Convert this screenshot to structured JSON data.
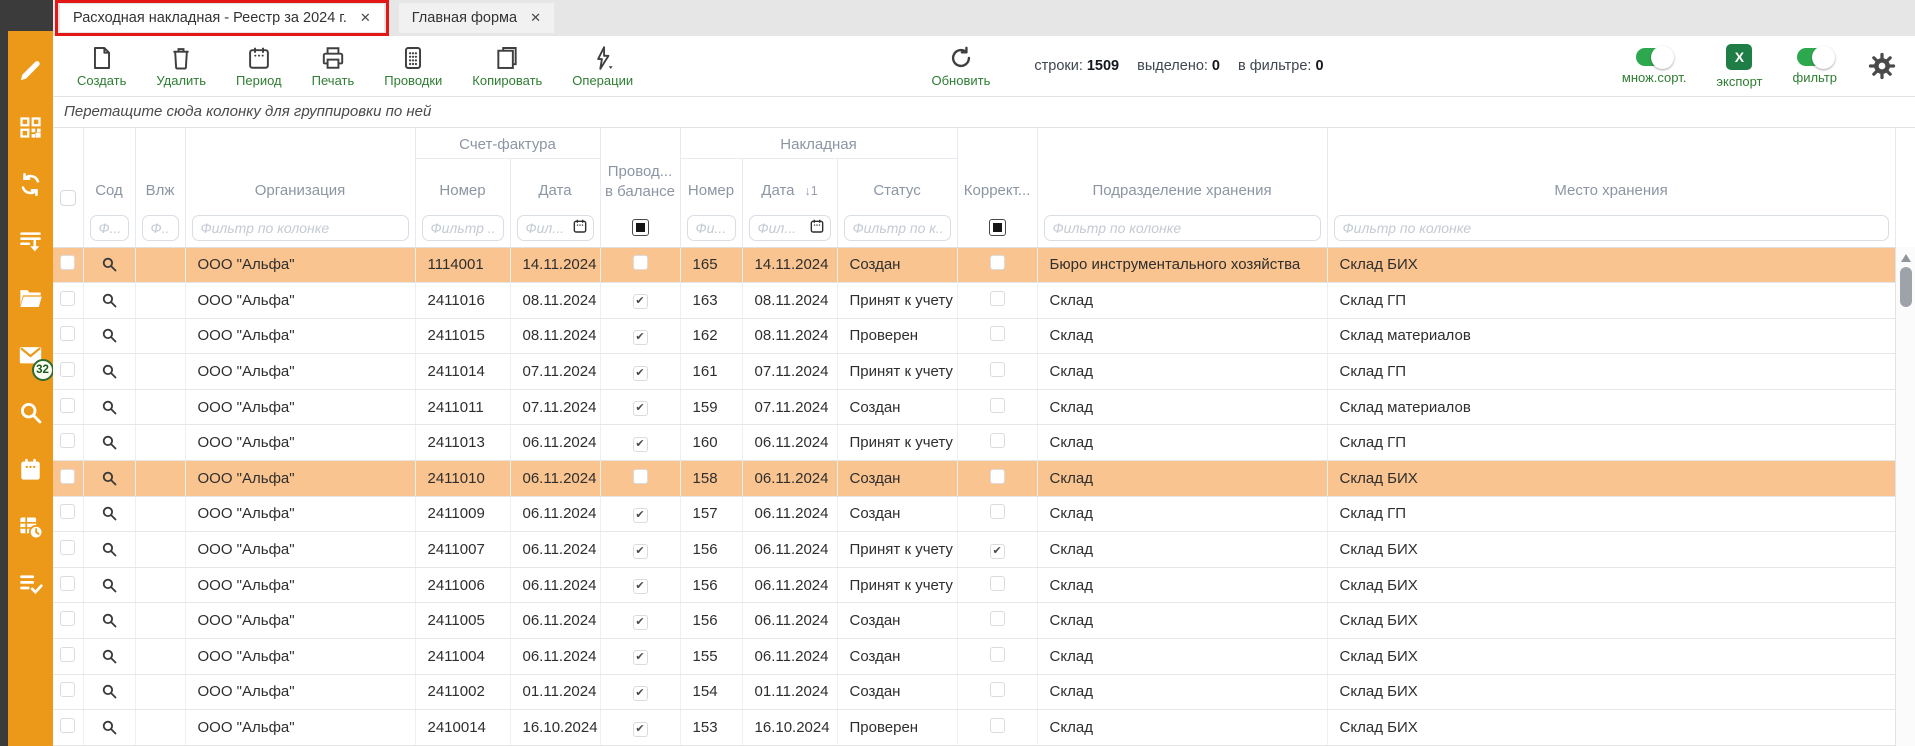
{
  "window": {
    "tabs": [
      {
        "label": "Расходная накладная - Реестр за 2024 г.",
        "close_glyph": "✕",
        "active": true,
        "annotated": true
      },
      {
        "label": "Главная форма",
        "close_glyph": "✕",
        "active": false,
        "annotated": false
      }
    ]
  },
  "sidebar": {
    "icons": [
      {
        "name": "pencil-icon"
      },
      {
        "name": "qr-code-icon"
      },
      {
        "name": "sync-icon"
      },
      {
        "name": "list-download-icon"
      },
      {
        "name": "folder-icon"
      },
      {
        "name": "mail-icon",
        "badge": "32"
      },
      {
        "name": "search-icon"
      },
      {
        "name": "calendar-white-icon"
      },
      {
        "name": "table-clock-icon"
      },
      {
        "name": "list-check-icon"
      }
    ]
  },
  "toolbar": {
    "buttons": [
      {
        "label": "Создать",
        "icon": "new-document-icon"
      },
      {
        "label": "Удалить",
        "icon": "trash-icon"
      },
      {
        "label": "Период",
        "icon": "calendar-icon"
      },
      {
        "label": "Печать",
        "icon": "printer-icon"
      },
      {
        "label": "Проводки",
        "icon": "calculator-icon"
      },
      {
        "label": "Копировать",
        "icon": "copy-icon"
      },
      {
        "label": "Операции",
        "icon": "lightning-icon",
        "has_dropdown": true
      }
    ],
    "refresh": {
      "label": "Обновить",
      "icon": "refresh-icon"
    },
    "stats": [
      {
        "label": "строки:",
        "value": "1509"
      },
      {
        "label": "выделено:",
        "value": "0"
      },
      {
        "label": "в фильтре:",
        "value": "0"
      }
    ],
    "multisort_toggle": {
      "label": "множ.сорт.",
      "on": true
    },
    "export_button": {
      "label": "экспорт",
      "icon_letter": "X"
    },
    "filter_toggle": {
      "label": "фильтр",
      "on": true
    },
    "settings_icon": "gear-icon"
  },
  "grouping_hint": "Перетащите сюда колонку для группировки по ней",
  "table": {
    "column_groups": {
      "invoice": "Счет-фактура",
      "waybill": "Накладная"
    },
    "columns": {
      "sod": "Сод",
      "vlzh": "Влж",
      "org": "Организация",
      "invoice_number": "Номер",
      "invoice_date": "Дата",
      "posted_line1": "Провод...",
      "posted_line2": "в балансе",
      "waybill_number": "Номер",
      "waybill_date": "Дата",
      "waybill_date_sort": "↓1",
      "status": "Статус",
      "correction": "Коррект...",
      "storage_division": "Подразделение хранения",
      "storage_place": "Место хранения"
    },
    "filters": {
      "sod": "Ф...",
      "vlzh": "Ф...",
      "org": "Фильтр по колонке",
      "invoice_number": "Фильтр ...",
      "invoice_date": "Фил...",
      "waybill_number": "Фи...",
      "waybill_date": "Фил...",
      "status": "Фильтр по к...",
      "storage_division": "Фильтр по колонке",
      "storage_place": "Фильтр по колонке"
    },
    "rows": [
      {
        "org": "ООО \"Альфа\"",
        "invoice_number": "1114001",
        "invoice_date": "14.11.2024",
        "posted": false,
        "waybill_number": "165",
        "waybill_date": "14.11.2024",
        "status": "Создан",
        "correction": false,
        "storage_division": "Бюро инструментального хозяйства",
        "storage_place": "Склад БИХ",
        "highlighted": true
      },
      {
        "org": "ООО \"Альфа\"",
        "invoice_number": "2411016",
        "invoice_date": "08.11.2024",
        "posted": true,
        "waybill_number": "163",
        "waybill_date": "08.11.2024",
        "status": "Принят к учету",
        "correction": false,
        "storage_division": "Склад",
        "storage_place": "Склад ГП",
        "highlighted": false
      },
      {
        "org": "ООО \"Альфа\"",
        "invoice_number": "2411015",
        "invoice_date": "08.11.2024",
        "posted": true,
        "waybill_number": "162",
        "waybill_date": "08.11.2024",
        "status": "Проверен",
        "correction": false,
        "storage_division": "Склад",
        "storage_place": "Склад материалов",
        "highlighted": false
      },
      {
        "org": "ООО \"Альфа\"",
        "invoice_number": "2411014",
        "invoice_date": "07.11.2024",
        "posted": true,
        "waybill_number": "161",
        "waybill_date": "07.11.2024",
        "status": "Принят к учету",
        "correction": false,
        "storage_division": "Склад",
        "storage_place": "Склад ГП",
        "highlighted": false
      },
      {
        "org": "ООО \"Альфа\"",
        "invoice_number": "2411011",
        "invoice_date": "07.11.2024",
        "posted": true,
        "waybill_number": "159",
        "waybill_date": "07.11.2024",
        "status": "Создан",
        "correction": false,
        "storage_division": "Склад",
        "storage_place": "Склад материалов",
        "highlighted": false
      },
      {
        "org": "ООО \"Альфа\"",
        "invoice_number": "2411013",
        "invoice_date": "06.11.2024",
        "posted": true,
        "waybill_number": "160",
        "waybill_date": "06.11.2024",
        "status": "Принят к учету",
        "correction": false,
        "storage_division": "Склад",
        "storage_place": "Склад ГП",
        "highlighted": false
      },
      {
        "org": "ООО \"Альфа\"",
        "invoice_number": "2411010",
        "invoice_date": "06.11.2024",
        "posted": false,
        "waybill_number": "158",
        "waybill_date": "06.11.2024",
        "status": "Создан",
        "correction": false,
        "storage_division": "Склад",
        "storage_place": "Склад БИХ",
        "highlighted": true
      },
      {
        "org": "ООО \"Альфа\"",
        "invoice_number": "2411009",
        "invoice_date": "06.11.2024",
        "posted": true,
        "waybill_number": "157",
        "waybill_date": "06.11.2024",
        "status": "Создан",
        "correction": false,
        "storage_division": "Склад",
        "storage_place": "Склад ГП",
        "highlighted": false
      },
      {
        "org": "ООО \"Альфа\"",
        "invoice_number": "2411007",
        "invoice_date": "06.11.2024",
        "posted": true,
        "waybill_number": "156",
        "waybill_date": "06.11.2024",
        "status": "Принят к учету",
        "correction": true,
        "storage_division": "Склад",
        "storage_place": "Склад БИХ",
        "highlighted": false
      },
      {
        "org": "ООО \"Альфа\"",
        "invoice_number": "2411006",
        "invoice_date": "06.11.2024",
        "posted": true,
        "waybill_number": "156",
        "waybill_date": "06.11.2024",
        "status": "Принят к учету",
        "correction": false,
        "storage_division": "Склад",
        "storage_place": "Склад БИХ",
        "highlighted": false
      },
      {
        "org": "ООО \"Альфа\"",
        "invoice_number": "2411005",
        "invoice_date": "06.11.2024",
        "posted": true,
        "waybill_number": "156",
        "waybill_date": "06.11.2024",
        "status": "Создан",
        "correction": false,
        "storage_division": "Склад",
        "storage_place": "Склад БИХ",
        "highlighted": false
      },
      {
        "org": "ООО \"Альфа\"",
        "invoice_number": "2411004",
        "invoice_date": "06.11.2024",
        "posted": true,
        "waybill_number": "155",
        "waybill_date": "06.11.2024",
        "status": "Создан",
        "correction": false,
        "storage_division": "Склад",
        "storage_place": "Склад БИХ",
        "highlighted": false
      },
      {
        "org": "ООО \"Альфа\"",
        "invoice_number": "2411002",
        "invoice_date": "01.11.2024",
        "posted": true,
        "waybill_number": "154",
        "waybill_date": "01.11.2024",
        "status": "Создан",
        "correction": false,
        "storage_division": "Склад",
        "storage_place": "Склад БИХ",
        "highlighted": false
      },
      {
        "org": "ООО \"Альфа\"",
        "invoice_number": "2410014",
        "invoice_date": "16.10.2024",
        "posted": true,
        "waybill_number": "153",
        "waybill_date": "16.10.2024",
        "status": "Проверен",
        "correction": false,
        "storage_division": "Склад",
        "storage_place": "Склад БИХ",
        "highlighted": false
      }
    ]
  },
  "colors": {
    "sidebar_orange": "#EC9919",
    "dark_strip": "#3B3B3B",
    "accent_green": "#2E7D32",
    "toggle_green": "#2EA84F",
    "excel_green": "#1F7E45",
    "row_highlight": "#F9C48F",
    "annotation_red": "#E41717",
    "header_text": "#8C96A3"
  }
}
